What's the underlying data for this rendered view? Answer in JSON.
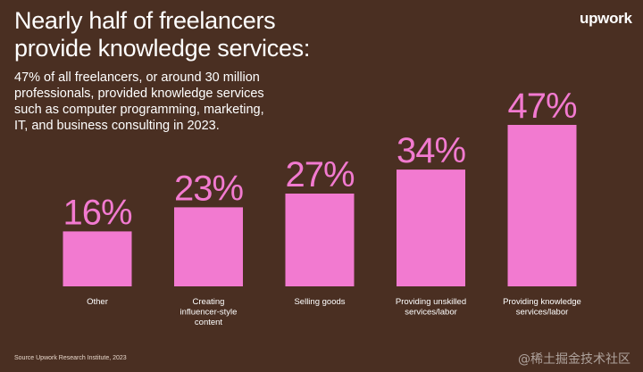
{
  "title_lines": [
    "Nearly half of freelancers",
    "provide knowledge services:"
  ],
  "logo": "upwork",
  "description_lines": [
    "47% of all freelancers, or around 30 million",
    "professionals, provided knowledge services",
    "such as computer programming, marketing,",
    "IT, and business consulting in 2023."
  ],
  "source": "Source Upwork Research Institute, 2023",
  "watermark": "@稀土掘金技术社区",
  "colors": {
    "background": "#4a2f22",
    "bar": "#f27ad0",
    "label": "#ffffff"
  },
  "chart_data": {
    "type": "bar",
    "categories": [
      [
        "Other"
      ],
      [
        "Creating",
        "influencer-style",
        "content"
      ],
      [
        "Selling goods"
      ],
      [
        "Providing unskilled",
        "services/labor"
      ],
      [
        "Providing knowledge",
        "services/labor"
      ]
    ],
    "values": [
      16,
      23,
      27,
      34,
      47
    ],
    "value_labels": [
      "16%",
      "23%",
      "27%",
      "34%",
      "47%"
    ],
    "ylim": [
      0,
      47
    ]
  }
}
